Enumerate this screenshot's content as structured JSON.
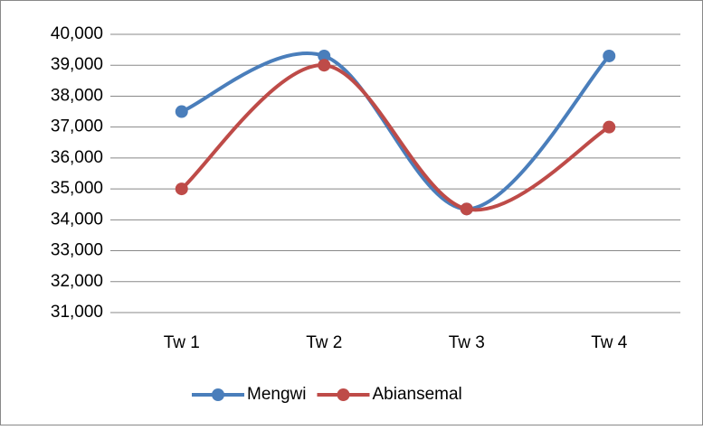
{
  "chart_data": {
    "type": "line",
    "categories": [
      "Tw 1",
      "Tw 2",
      "Tw 3",
      "Tw 4"
    ],
    "series": [
      {
        "name": "Mengwi",
        "color": "#4a7ebb",
        "values": [
          37500,
          39300,
          34350,
          39300
        ]
      },
      {
        "name": "Abiansemal",
        "color": "#be4b48",
        "values": [
          35000,
          39000,
          34350,
          37000
        ]
      }
    ],
    "ylim": [
      31000,
      40000
    ],
    "yticks": [
      {
        "value": 31000,
        "label": "31,000"
      },
      {
        "value": 32000,
        "label": "32,000"
      },
      {
        "value": 33000,
        "label": "33,000"
      },
      {
        "value": 34000,
        "label": "34,000"
      },
      {
        "value": 35000,
        "label": "35,000"
      },
      {
        "value": 36000,
        "label": "36,000"
      },
      {
        "value": 37000,
        "label": "37,000"
      },
      {
        "value": 38000,
        "label": "38,000"
      },
      {
        "value": 39000,
        "label": "39,000"
      },
      {
        "value": 40000,
        "label": "40,000"
      }
    ],
    "grid": true,
    "smooth": true,
    "legend": "bottom"
  }
}
